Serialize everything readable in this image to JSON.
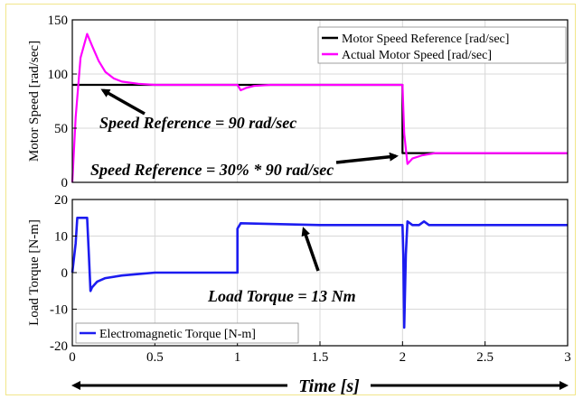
{
  "chart_data": [
    {
      "type": "line",
      "ylabel": "Motor Speed [rad/sec]",
      "xlim": [
        0,
        3
      ],
      "ylim": [
        0,
        150
      ],
      "yticks": [
        0,
        50,
        100,
        150
      ],
      "grid": true,
      "legend_position": "top-right",
      "series": [
        {
          "name": "Motor Speed Reference [rad/sec]",
          "color": "#000000",
          "x": [
            0,
            2.0,
            2.0,
            3.0
          ],
          "y": [
            90,
            90,
            27,
            27
          ]
        },
        {
          "name": "Actual Motor Speed [rad/sec]",
          "color": "#ff00ff",
          "x": [
            0,
            0.02,
            0.05,
            0.09,
            0.12,
            0.16,
            0.2,
            0.25,
            0.3,
            0.4,
            0.5,
            0.7,
            1.0,
            1.02,
            1.05,
            1.1,
            1.2,
            2.0,
            2.01,
            2.03,
            2.06,
            2.12,
            2.2,
            3.0
          ],
          "y": [
            0,
            60,
            115,
            137,
            126,
            112,
            102,
            96,
            93,
            91,
            90,
            90,
            90,
            85,
            87,
            89,
            90,
            90,
            45,
            17,
            22,
            25,
            27,
            27
          ]
        }
      ],
      "annotations": [
        {
          "text": "Speed Reference = 90 rad/sec",
          "arrow_to": [
            0.16,
            90
          ]
        },
        {
          "text": "Speed Reference = 30% * 90 rad/sec",
          "arrow_to": [
            2.01,
            27
          ]
        }
      ]
    },
    {
      "type": "line",
      "xlabel": "Time [s]",
      "ylabel": "Load Torque [N-m]",
      "xlim": [
        0,
        3
      ],
      "ylim": [
        -20,
        20
      ],
      "xticks": [
        0,
        0.5,
        1,
        1.5,
        2,
        2.5,
        3
      ],
      "yticks": [
        -20,
        -10,
        0,
        10,
        20
      ],
      "grid": true,
      "legend_position": "bottom-left",
      "series": [
        {
          "name": "Electromagnetic Torque [N-m]",
          "color": "#1c1cf0",
          "x": [
            0,
            0.02,
            0.03,
            0.09,
            0.1,
            0.11,
            0.12,
            0.15,
            0.2,
            0.3,
            0.4,
            0.5,
            0.7,
            1.0,
            1.0,
            1.02,
            1.5,
            2.0,
            2.005,
            2.01,
            2.02,
            2.03,
            2.06,
            2.1,
            2.13,
            2.16,
            2.3,
            3.0
          ],
          "y": [
            0,
            8,
            15,
            15,
            5,
            -5,
            -4,
            -2.5,
            -1.5,
            -0.8,
            -0.4,
            0,
            0,
            0,
            12,
            13.5,
            13,
            13,
            5,
            -15,
            5,
            14,
            13,
            13,
            14,
            13,
            13,
            13
          ]
        }
      ],
      "annotations": [
        {
          "text": "Load Torque = 13 Nm",
          "arrow_to": [
            1.42,
            12.5
          ]
        }
      ]
    }
  ],
  "xaxis_arrow_label": "Time [s]"
}
